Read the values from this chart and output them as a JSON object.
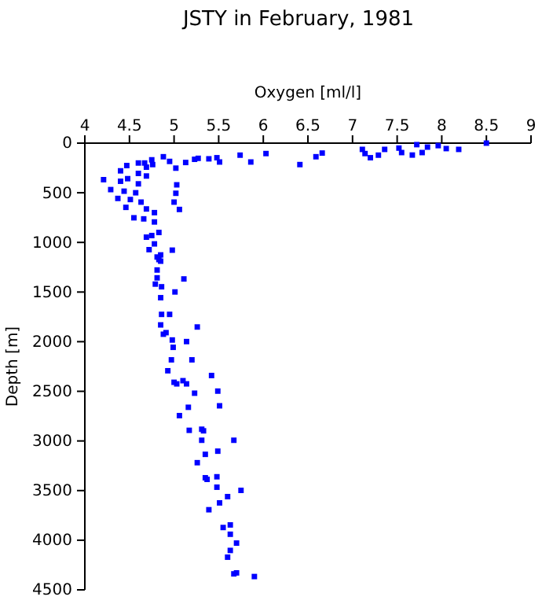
{
  "chart_data": {
    "type": "scatter",
    "title": "JSTY in February, 1981",
    "xlabel": "Oxygen [ml/l]",
    "ylabel": "Depth [m]",
    "xlim": [
      4,
      9
    ],
    "xticks": [
      4,
      4.5,
      5,
      5.5,
      6,
      6.5,
      7,
      7.5,
      8,
      8.5,
      9
    ],
    "ylim": [
      4500,
      0
    ],
    "yticks": [
      0,
      500,
      1000,
      1500,
      2000,
      2500,
      3000,
      3500,
      4000,
      4500
    ],
    "grid": false,
    "marker": "square",
    "series": [
      {
        "color": "#0000ff",
        "x": [
          8.5,
          7.72,
          7.84,
          7.96,
          8.05,
          8.19,
          7.78,
          7.67,
          7.55,
          7.52,
          7.14,
          7.2,
          7.29,
          7.36,
          7.11,
          6.66,
          6.59,
          6.41,
          6.03,
          5.86,
          5.74,
          5.51,
          5.48,
          5.39,
          5.27,
          5.23,
          5.13,
          5.02,
          4.95,
          4.88,
          5.03,
          5.02,
          5.0,
          5.06,
          4.21,
          4.29,
          4.37,
          4.46,
          4.55,
          4.47,
          4.4,
          4.48,
          4.4,
          4.44,
          4.51,
          4.6,
          4.67,
          4.6,
          4.6,
          4.69,
          4.69,
          4.75,
          4.76,
          4.57,
          4.63,
          4.69,
          4.78,
          4.66,
          4.78,
          4.69,
          4.75,
          4.83,
          4.78,
          4.72,
          4.98,
          4.85,
          4.81,
          4.83,
          4.85,
          4.81,
          4.81,
          4.79,
          4.86,
          5.11,
          5.01,
          4.85,
          4.86,
          4.95,
          4.85,
          5.26,
          4.88,
          4.91,
          4.98,
          5.14,
          4.99,
          4.97,
          5.2,
          4.93,
          5.0,
          5.03,
          5.1,
          5.14,
          5.42,
          5.49,
          5.23,
          5.16,
          5.51,
          5.06,
          5.17,
          5.31,
          5.33,
          5.31,
          5.67,
          5.49,
          5.35,
          5.26,
          5.35,
          5.37,
          5.48,
          5.48,
          5.75,
          5.6,
          5.51,
          5.39,
          5.55,
          5.63,
          5.63,
          5.7,
          5.63,
          5.6,
          5.67,
          5.7,
          5.9
        ],
        "values": [
          0,
          15,
          40,
          25,
          55,
          63,
          95,
          120,
          95,
          50,
          105,
          147,
          121,
          63,
          63,
          100,
          137,
          216,
          105,
          190,
          121,
          190,
          147,
          158,
          153,
          163,
          195,
          252,
          184,
          137,
          420,
          505,
          594,
          668,
          368,
          468,
          557,
          647,
          752,
          226,
          279,
          358,
          384,
          484,
          568,
          200,
          200,
          305,
          410,
          331,
          242,
          168,
          216,
          500,
          594,
          663,
          700,
          763,
          794,
          947,
          931,
          900,
          1015,
          1073,
          1078,
          1126,
          1147,
          1173,
          1189,
          1278,
          1357,
          1420,
          1447,
          1368,
          1499,
          1557,
          1725,
          1725,
          1831,
          1852,
          1925,
          1909,
          1983,
          1999,
          2057,
          2183,
          2183,
          2293,
          2409,
          2425,
          2393,
          2425,
          2341,
          2498,
          2519,
          2661,
          2646,
          2745,
          2893,
          2882,
          2898,
          2993,
          2993,
          3103,
          3135,
          3219,
          3371,
          3387,
          3361,
          3466,
          3498,
          3561,
          3624,
          3693,
          3872,
          3846,
          3940,
          4029,
          4103,
          4171,
          4339,
          4329,
          4366
        ]
      }
    ]
  }
}
